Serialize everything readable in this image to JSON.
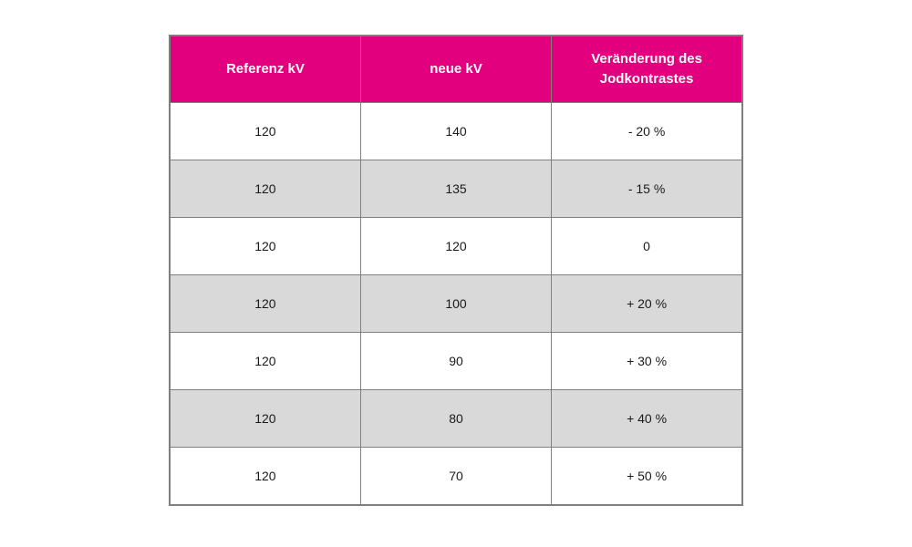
{
  "page": {
    "background": "#ffffff"
  },
  "colors": {
    "header_bg": "#e2007e",
    "header_text": "#ffffff",
    "row_alt_bg": "#d9d9d9",
    "row_bg": "#ffffff",
    "border": "#808080",
    "cell_text": "#1a1a1a"
  },
  "table": {
    "headers": [
      "Referenz kV",
      "neue kV",
      "Veränderung des Jodkontrastes"
    ],
    "rows": [
      [
        "120",
        "140",
        "- 20 %"
      ],
      [
        "120",
        "135",
        "- 15 %"
      ],
      [
        "120",
        "120",
        "0"
      ],
      [
        "120",
        "100",
        "+ 20 %"
      ],
      [
        "120",
        "90",
        "+ 30 %"
      ],
      [
        "120",
        "80",
        "+ 40 %"
      ],
      [
        "120",
        "70",
        "+ 50 %"
      ]
    ]
  },
  "chart_data": {
    "type": "table",
    "title": "",
    "columns": [
      "Referenz kV",
      "neue kV",
      "Veränderung des Jodkontrastes"
    ],
    "rows": [
      {
        "referenz_kv": 120,
        "neue_kv": 140,
        "veraenderung_jodkontrast": "- 20 %"
      },
      {
        "referenz_kv": 120,
        "neue_kv": 135,
        "veraenderung_jodkontrast": "- 15 %"
      },
      {
        "referenz_kv": 120,
        "neue_kv": 120,
        "veraenderung_jodkontrast": "0"
      },
      {
        "referenz_kv": 120,
        "neue_kv": 100,
        "veraenderung_jodkontrast": "+ 20 %"
      },
      {
        "referenz_kv": 120,
        "neue_kv": 90,
        "veraenderung_jodkontrast": "+ 30 %"
      },
      {
        "referenz_kv": 120,
        "neue_kv": 80,
        "veraenderung_jodkontrast": "+ 40 %"
      },
      {
        "referenz_kv": 120,
        "neue_kv": 70,
        "veraenderung_jodkontrast": "+ 50 %"
      }
    ],
    "layout_hints": {
      "header_style": "magenta background, white bold text",
      "row_striping": "alternating white and light gray starting with white",
      "alignment": "all cells centered"
    }
  }
}
